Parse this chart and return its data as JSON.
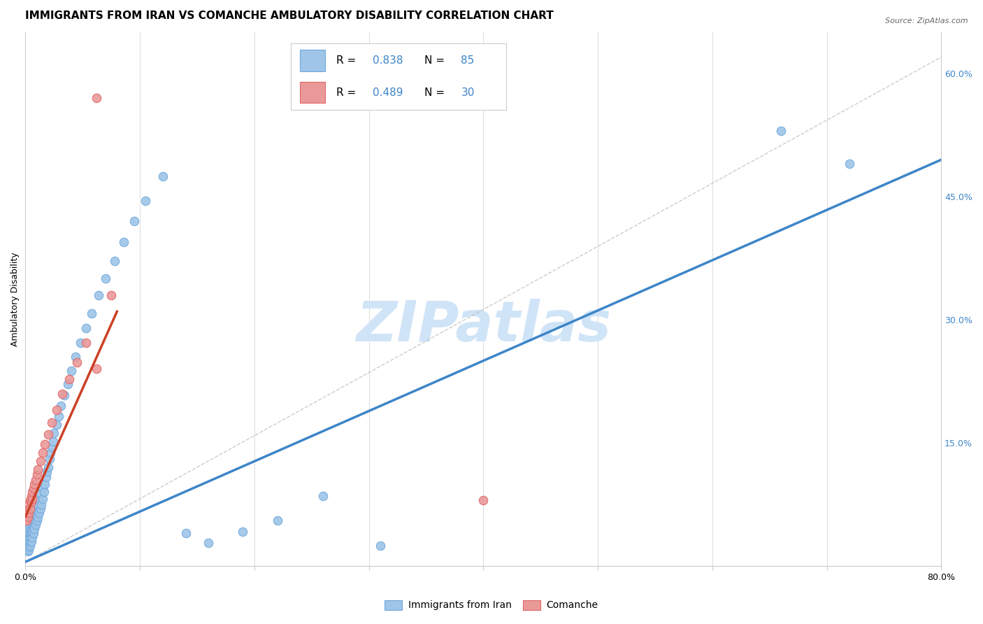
{
  "title": "IMMIGRANTS FROM IRAN VS COMANCHE AMBULATORY DISABILITY CORRELATION CHART",
  "source": "Source: ZipAtlas.com",
  "xlabel_bottom": [
    "Immigrants from Iran",
    "Comanche"
  ],
  "ylabel": "Ambulatory Disability",
  "xlim": [
    0,
    0.8
  ],
  "ylim": [
    0,
    0.65
  ],
  "legend_r1": "R = 0.838",
  "legend_n1": "N = 85",
  "legend_r2": "R = 0.489",
  "legend_n2": "N = 30",
  "blue_color": "#9FC5E8",
  "pink_color": "#EA9999",
  "blue_fill": "#9FC5E8",
  "pink_fill": "#EA9999",
  "blue_edge": "#6FA8DC",
  "pink_edge": "#E06666",
  "blue_line_color": "#3D85C8",
  "pink_line_color": "#CC4125",
  "grey_line_color": "#AAAAAA",
  "watermark_color": "#D0E4F7",
  "background_color": "#FFFFFF",
  "grid_color": "#CCCCCC",
  "title_fontsize": 11,
  "axis_label_fontsize": 9,
  "tick_fontsize": 9,
  "blue_scatter_x": [
    0.001,
    0.001,
    0.001,
    0.001,
    0.002,
    0.002,
    0.002,
    0.002,
    0.002,
    0.002,
    0.003,
    0.003,
    0.003,
    0.003,
    0.003,
    0.003,
    0.003,
    0.004,
    0.004,
    0.004,
    0.004,
    0.004,
    0.005,
    0.005,
    0.005,
    0.005,
    0.006,
    0.006,
    0.006,
    0.006,
    0.007,
    0.007,
    0.007,
    0.007,
    0.008,
    0.008,
    0.008,
    0.009,
    0.009,
    0.01,
    0.01,
    0.011,
    0.011,
    0.012,
    0.012,
    0.013,
    0.013,
    0.014,
    0.015,
    0.015,
    0.016,
    0.017,
    0.018,
    0.019,
    0.02,
    0.021,
    0.022,
    0.023,
    0.024,
    0.025,
    0.027,
    0.029,
    0.031,
    0.034,
    0.037,
    0.04,
    0.044,
    0.048,
    0.053,
    0.058,
    0.064,
    0.07,
    0.078,
    0.086,
    0.095,
    0.105,
    0.12,
    0.14,
    0.16,
    0.19,
    0.22,
    0.26,
    0.31,
    0.66,
    0.72
  ],
  "blue_scatter_y": [
    0.02,
    0.022,
    0.025,
    0.028,
    0.018,
    0.022,
    0.025,
    0.028,
    0.032,
    0.038,
    0.02,
    0.023,
    0.026,
    0.03,
    0.035,
    0.04,
    0.045,
    0.025,
    0.03,
    0.035,
    0.04,
    0.048,
    0.03,
    0.038,
    0.045,
    0.055,
    0.035,
    0.042,
    0.05,
    0.06,
    0.04,
    0.048,
    0.058,
    0.068,
    0.045,
    0.055,
    0.065,
    0.05,
    0.062,
    0.055,
    0.068,
    0.06,
    0.075,
    0.065,
    0.08,
    0.07,
    0.088,
    0.075,
    0.082,
    0.095,
    0.09,
    0.1,
    0.108,
    0.115,
    0.12,
    0.13,
    0.138,
    0.145,
    0.152,
    0.162,
    0.172,
    0.182,
    0.195,
    0.208,
    0.222,
    0.238,
    0.255,
    0.272,
    0.29,
    0.308,
    0.33,
    0.35,
    0.372,
    0.395,
    0.42,
    0.445,
    0.475,
    0.04,
    0.028,
    0.042,
    0.055,
    0.085,
    0.025,
    0.53,
    0.49
  ],
  "pink_scatter_x": [
    0.001,
    0.002,
    0.002,
    0.003,
    0.003,
    0.004,
    0.004,
    0.005,
    0.005,
    0.006,
    0.006,
    0.007,
    0.008,
    0.009,
    0.01,
    0.011,
    0.013,
    0.015,
    0.017,
    0.02,
    0.023,
    0.027,
    0.032,
    0.038,
    0.045,
    0.053,
    0.062,
    0.075,
    0.4,
    0.062
  ],
  "pink_scatter_y": [
    0.055,
    0.06,
    0.068,
    0.065,
    0.075,
    0.07,
    0.08,
    0.078,
    0.085,
    0.082,
    0.09,
    0.095,
    0.1,
    0.105,
    0.112,
    0.118,
    0.128,
    0.138,
    0.148,
    0.16,
    0.175,
    0.19,
    0.21,
    0.228,
    0.248,
    0.272,
    0.24,
    0.33,
    0.08,
    0.57
  ],
  "blue_line_x": [
    0.0,
    0.8
  ],
  "blue_line_y": [
    0.005,
    0.495
  ],
  "pink_line_x": [
    0.0,
    0.08
  ],
  "pink_line_y": [
    0.06,
    0.31
  ],
  "grey_line_x": [
    0.0,
    0.8
  ],
  "grey_line_y": [
    0.005,
    0.62
  ]
}
